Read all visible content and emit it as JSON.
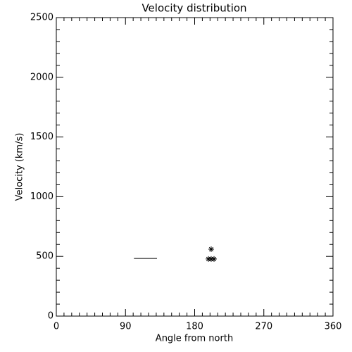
{
  "chart_data": {
    "type": "scatter",
    "title": "Velocity distribution",
    "x_label": "Angle from north",
    "y_label": "Velocity (km/s)",
    "xlim": [
      0,
      360
    ],
    "xticks": [
      0,
      90,
      180,
      270,
      360
    ],
    "ylim": [
      0,
      2500
    ],
    "yticks": [
      0,
      500,
      1000,
      1500,
      2000,
      2500
    ],
    "color": "#000000",
    "series": [
      {
        "style": "line",
        "x": [
          101,
          131
        ],
        "values": [
          483,
          483
        ]
      },
      {
        "style": "asterisk",
        "x": [
          201.5,
          197.9,
          201.5,
          205.2
        ],
        "values": [
          560,
          478,
          478,
          478
        ]
      }
    ]
  }
}
